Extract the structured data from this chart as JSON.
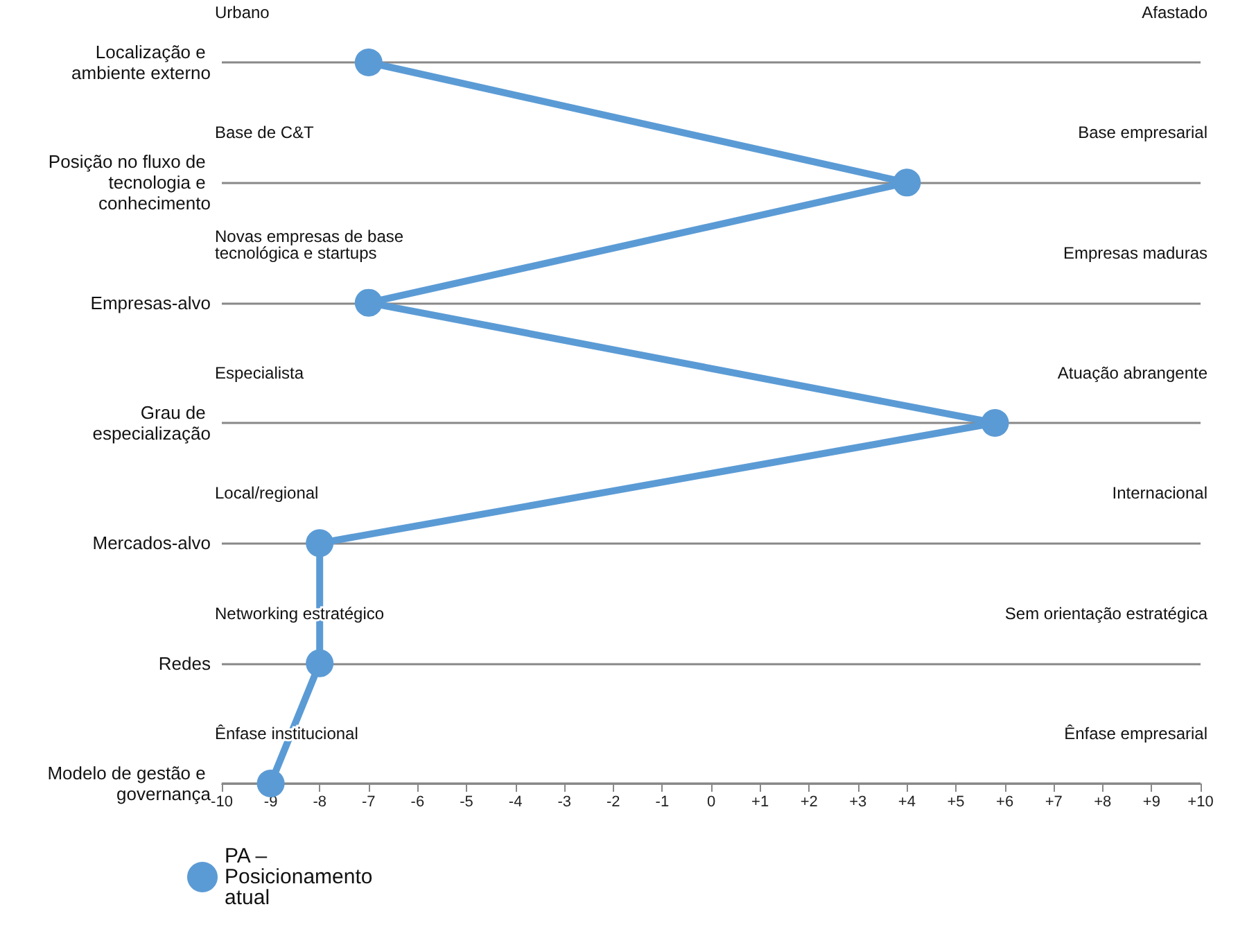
{
  "chart_data": {
    "type": "line",
    "orientation": "horizontal",
    "categories": [
      "Localização e ambiente externo",
      "Posição no fluxo de tecnologia e conhecimento",
      "Empresas-alvo",
      "Grau de especialização",
      "Mercados-alvo",
      "Redes",
      "Modelo de gestão e governança"
    ],
    "series": [
      {
        "name": "PA – Posicionamento atual",
        "color": "#5b9bd5",
        "values": [
          -7,
          4,
          -7,
          5.8,
          -8,
          -8,
          -9
        ]
      }
    ],
    "xlim": [
      -10,
      10
    ],
    "xticks": [
      -10,
      -9,
      -8,
      -7,
      -6,
      -5,
      -4,
      -3,
      -2,
      -1,
      0,
      {
        "value": 1,
        "label": "+1"
      },
      {
        "value": 2,
        "label": "+2"
      },
      {
        "value": 3,
        "label": "+3"
      },
      {
        "value": 4,
        "label": "+4"
      },
      {
        "value": 5,
        "label": "+5"
      },
      {
        "value": 6,
        "label": "+6"
      },
      {
        "value": 7,
        "label": "+7"
      },
      {
        "value": 8,
        "label": "+8"
      },
      {
        "value": 9,
        "label": "+9"
      },
      {
        "value": 10,
        "label": "+10"
      }
    ],
    "annotations": [
      "Urbano",
      "Afastado",
      "Base de C&T",
      "Base empresarial",
      "Novas empresas de base tecnológica e startups",
      "Empresas maduras",
      "Especialista",
      "Atuação abrangente",
      "Local/regional",
      "Internacional",
      "Networking estratégico",
      "Sem orientação estratégica",
      "Ênfase institucional",
      "Ênfase empresarial"
    ],
    "grid": "y",
    "legend": "bottom left",
    "marker": "circle",
    "line_style": "solid"
  }
}
